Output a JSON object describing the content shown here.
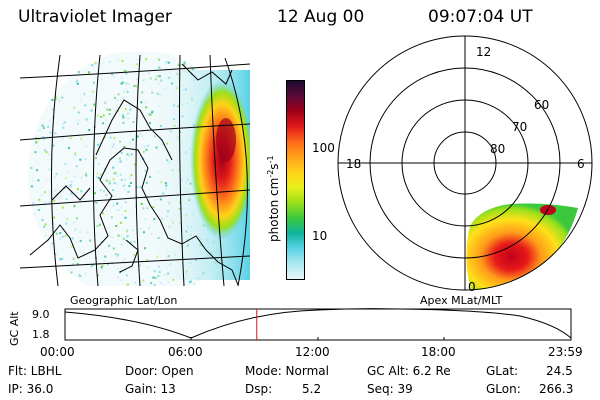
{
  "header": {
    "instrument": "Ultraviolet Imager",
    "date": "12 Aug 00",
    "time": "09:07:04 UT"
  },
  "colorbar": {
    "unit_label": "photon cm",
    "unit_exp1": "-2",
    "unit_mid": "s",
    "unit_exp2": "-1",
    "ticks": [
      "100",
      "10"
    ],
    "colors": [
      "#1c0a2e",
      "#5b0a3a",
      "#a0001a",
      "#e01a1a",
      "#ff6a1a",
      "#ffa21a",
      "#ffd21a",
      "#e8f01a",
      "#9ae01a",
      "#3cc83c",
      "#10b4a0",
      "#5ad2e6",
      "#aee8f0",
      "#e8f6f8"
    ]
  },
  "polar": {
    "mlt_labels": [
      "12",
      "18",
      "6",
      "0"
    ],
    "lat_labels": [
      "60",
      "70",
      "80"
    ]
  },
  "left_caption": "Geographic Lat/Lon",
  "right_caption": "Apex MLat/MLT",
  "timeline": {
    "axis_label": "GC Alt",
    "y_ticks": [
      "9.0",
      "1.8"
    ],
    "x_ticks": [
      "00:00",
      "06:00",
      "12:00",
      "18:00",
      "23:59"
    ],
    "current_fraction": 0.379
  },
  "info": {
    "flt": "Flt: LBHL",
    "ip": "IP: 36.0",
    "door": "Door: Open",
    "gain": "Gain: 13",
    "mode": "Mode: Normal",
    "dsp_label": "Dsp:",
    "dsp_value": "5.2",
    "gc_alt": "GC Alt: 6.2 Re",
    "seq": "Seq: 39",
    "glat_label": "GLat:",
    "glat_value": "24.5",
    "glon_label": "GLon:",
    "glon_value": "266.3"
  }
}
